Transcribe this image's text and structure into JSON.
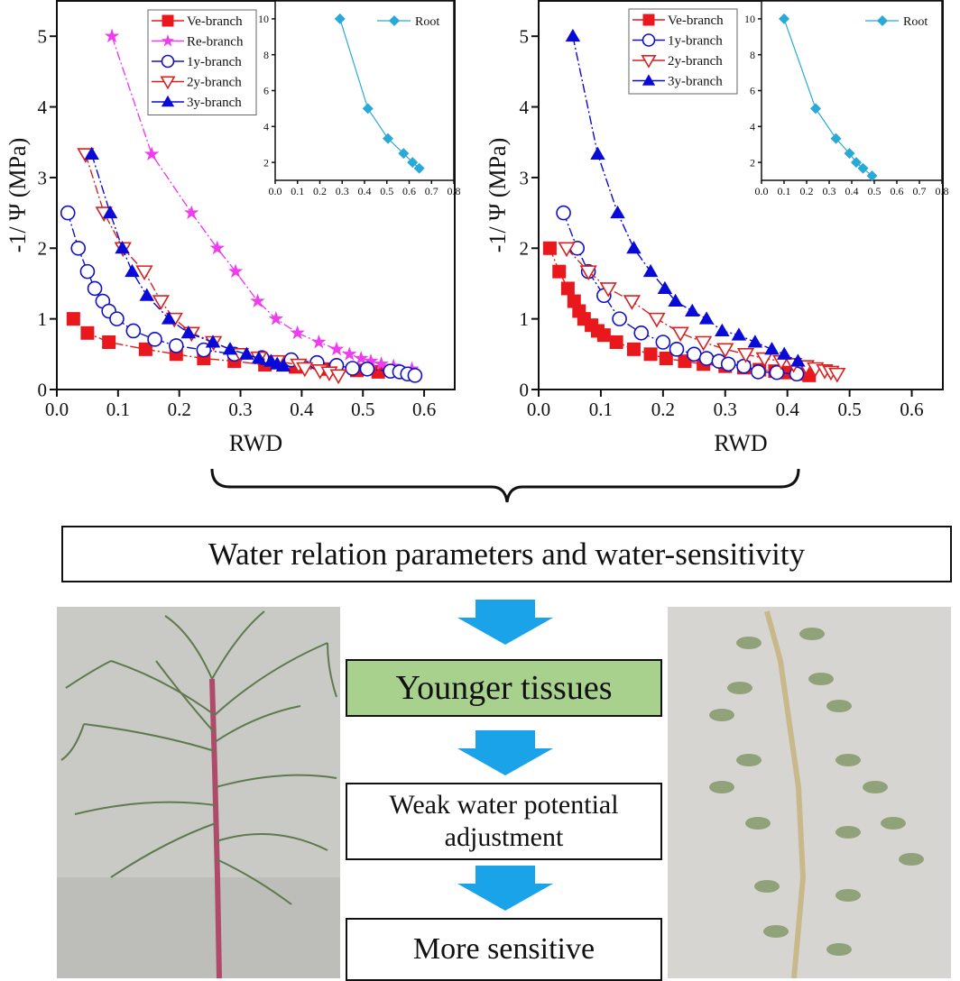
{
  "colors": {
    "ve": "#e8181c",
    "re": "#f03cf0",
    "y1": "#1010c8",
    "y2": "#d82020",
    "y3": "#0a0ad8",
    "root": "#29a9d8",
    "arrow": "#1aa3e8",
    "green_box": "#a9d18e"
  },
  "chart_data": [
    {
      "type": "line",
      "title": "",
      "xlabel": "RWD",
      "ylabel": "-1/ Ψ (MPa)",
      "xlim": [
        0,
        0.65
      ],
      "ylim": [
        0,
        5.5
      ],
      "xticks": [
        "0.0",
        "0.1",
        "0.2",
        "0.3",
        "0.4",
        "0.5",
        "0.6"
      ],
      "yticks": [
        "0",
        "1",
        "2",
        "3",
        "4",
        "5"
      ],
      "legend_placement": "top-center",
      "series": [
        {
          "name": "Ve-branch",
          "marker": "square",
          "color_key": "ve",
          "x": [
            0.027,
            0.05,
            0.085,
            0.145,
            0.195,
            0.24,
            0.29,
            0.34,
            0.39,
            0.44,
            0.49,
            0.525
          ],
          "y": [
            1.0,
            0.8,
            0.67,
            0.57,
            0.5,
            0.44,
            0.4,
            0.35,
            0.32,
            0.29,
            0.27,
            0.25
          ]
        },
        {
          "name": "Re-branch",
          "marker": "star",
          "color_key": "re",
          "x": [
            0.09,
            0.155,
            0.22,
            0.262,
            0.292,
            0.328,
            0.358,
            0.393,
            0.428,
            0.457,
            0.478,
            0.497,
            0.513,
            0.53,
            0.55,
            0.58
          ],
          "y": [
            5.0,
            3.33,
            2.5,
            2.0,
            1.67,
            1.25,
            1.0,
            0.8,
            0.67,
            0.57,
            0.5,
            0.44,
            0.4,
            0.36,
            0.33,
            0.29
          ]
        },
        {
          "name": "1y-branch",
          "marker": "circle-open",
          "color_key": "y1",
          "x": [
            0.018,
            0.035,
            0.05,
            0.062,
            0.075,
            0.085,
            0.098,
            0.125,
            0.16,
            0.195,
            0.24,
            0.29,
            0.335,
            0.383,
            0.425,
            0.457,
            0.483,
            0.507,
            0.545,
            0.56,
            0.573,
            0.585
          ],
          "y": [
            2.5,
            2.0,
            1.67,
            1.43,
            1.25,
            1.11,
            1.0,
            0.83,
            0.71,
            0.62,
            0.56,
            0.5,
            0.45,
            0.42,
            0.38,
            0.34,
            0.3,
            0.29,
            0.26,
            0.25,
            0.22,
            0.2
          ]
        },
        {
          "name": "2y-branch",
          "marker": "triangle-down-open",
          "color_key": "y2",
          "x": [
            0.047,
            0.077,
            0.108,
            0.143,
            0.17,
            0.192,
            0.22,
            0.256,
            0.3,
            0.33,
            0.36,
            0.395,
            0.405,
            0.43,
            0.445,
            0.46
          ],
          "y": [
            3.33,
            2.5,
            2.0,
            1.67,
            1.25,
            1.0,
            0.8,
            0.67,
            0.5,
            0.45,
            0.4,
            0.35,
            0.3,
            0.27,
            0.24,
            0.2
          ]
        },
        {
          "name": "3y-branch",
          "marker": "triangle-up",
          "color_key": "y3",
          "x": [
            0.057,
            0.087,
            0.107,
            0.123,
            0.147,
            0.183,
            0.215,
            0.255,
            0.283,
            0.31,
            0.33,
            0.35,
            0.36,
            0.37
          ],
          "y": [
            3.33,
            2.5,
            2.0,
            1.67,
            1.33,
            1.0,
            0.8,
            0.67,
            0.57,
            0.5,
            0.44,
            0.4,
            0.36,
            0.33
          ]
        }
      ],
      "inset": {
        "type": "line",
        "xlim": [
          0,
          0.8
        ],
        "ylim": [
          1,
          11
        ],
        "xticks": [
          "0.0",
          "0.1",
          "0.2",
          "0.3",
          "0.4",
          "0.5",
          "0.6",
          "0.7",
          "0.8"
        ],
        "yticks": [
          "2",
          "4",
          "6",
          "8",
          "10"
        ],
        "series": [
          {
            "name": "Root",
            "marker": "diamond",
            "color_key": "root",
            "x": [
              0.29,
              0.415,
              0.505,
              0.575,
              0.615,
              0.645
            ],
            "y": [
              10,
              5,
              3.33,
              2.5,
              2.0,
              1.67
            ]
          }
        ]
      }
    },
    {
      "type": "line",
      "title": "",
      "xlabel": "RWD",
      "ylabel": "-1/ Ψ (MPa)",
      "xlim": [
        0,
        0.65
      ],
      "ylim": [
        0,
        5.5
      ],
      "xticks": [
        "0.0",
        "0.1",
        "0.2",
        "0.3",
        "0.4",
        "0.5",
        "0.6"
      ],
      "yticks": [
        "0",
        "1",
        "2",
        "3",
        "4",
        "5"
      ],
      "legend_placement": "top-center",
      "series": [
        {
          "name": "Ve-branch",
          "marker": "square",
          "color_key": "ve",
          "x": [
            0.018,
            0.033,
            0.047,
            0.057,
            0.065,
            0.073,
            0.085,
            0.095,
            0.105,
            0.125,
            0.153,
            0.18,
            0.205,
            0.235,
            0.265,
            0.3,
            0.33,
            0.355,
            0.38,
            0.4,
            0.42,
            0.435
          ],
          "y": [
            2.0,
            1.67,
            1.43,
            1.25,
            1.11,
            1.0,
            0.91,
            0.83,
            0.77,
            0.67,
            0.57,
            0.5,
            0.44,
            0.4,
            0.36,
            0.33,
            0.31,
            0.28,
            0.26,
            0.24,
            0.22,
            0.2
          ]
        },
        {
          "name": "1y-branch",
          "marker": "circle-open",
          "color_key": "y1",
          "x": [
            0.04,
            0.062,
            0.08,
            0.105,
            0.13,
            0.165,
            0.2,
            0.222,
            0.25,
            0.27,
            0.29,
            0.305,
            0.33,
            0.353,
            0.383,
            0.415
          ],
          "y": [
            2.5,
            2.0,
            1.67,
            1.33,
            1.0,
            0.8,
            0.67,
            0.57,
            0.5,
            0.44,
            0.4,
            0.36,
            0.33,
            0.25,
            0.24,
            0.22
          ]
        },
        {
          "name": "2y-branch",
          "marker": "triangle-down-open",
          "color_key": "y2",
          "x": [
            0.045,
            0.08,
            0.112,
            0.15,
            0.19,
            0.228,
            0.265,
            0.3,
            0.333,
            0.363,
            0.39,
            0.41,
            0.43,
            0.445,
            0.46,
            0.47,
            0.48
          ],
          "y": [
            2.0,
            1.67,
            1.43,
            1.25,
            1.0,
            0.8,
            0.67,
            0.57,
            0.5,
            0.44,
            0.4,
            0.36,
            0.33,
            0.3,
            0.27,
            0.25,
            0.22
          ]
        },
        {
          "name": "3y-branch",
          "marker": "triangle-up",
          "color_key": "y3",
          "x": [
            0.055,
            0.095,
            0.127,
            0.153,
            0.18,
            0.203,
            0.22,
            0.247,
            0.27,
            0.295,
            0.322,
            0.348,
            0.375,
            0.395,
            0.417
          ],
          "y": [
            5.0,
            3.33,
            2.5,
            2.0,
            1.67,
            1.43,
            1.25,
            1.11,
            1.0,
            0.83,
            0.77,
            0.67,
            0.57,
            0.5,
            0.4
          ]
        }
      ],
      "inset": {
        "type": "line",
        "xlim": [
          0,
          0.8
        ],
        "ylim": [
          1,
          11
        ],
        "xticks": [
          "0.0",
          "0.1",
          "0.2",
          "0.3",
          "0.4",
          "0.5",
          "0.6",
          "0.7",
          "0.8"
        ],
        "yticks": [
          "2",
          "4",
          "6",
          "8",
          "10"
        ],
        "series": [
          {
            "name": "Root",
            "marker": "diamond",
            "color_key": "root",
            "x": [
              0.1,
              0.24,
              0.33,
              0.39,
              0.42,
              0.45,
              0.49
            ],
            "y": [
              10,
              5,
              3.33,
              2.5,
              2.0,
              1.67,
              1.25
            ]
          }
        ]
      }
    }
  ],
  "flow": {
    "summary": "Water relation parameters and water-sensitivity",
    "step1": "Younger tissues",
    "step2": "Weak water potential adjustment",
    "step3": "More sensitive"
  }
}
